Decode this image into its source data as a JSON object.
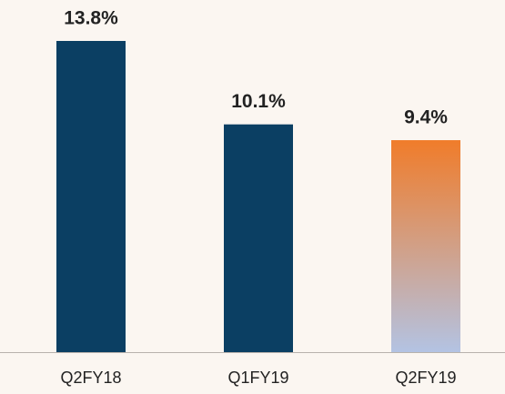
{
  "chart_data": {
    "type": "bar",
    "categories": [
      "Q2FY18",
      "Q1FY19",
      "Q2FY19"
    ],
    "values": [
      13.8,
      10.1,
      9.4
    ],
    "value_labels": [
      "13.8%",
      "10.1%",
      "9.4%"
    ],
    "colors": [
      "#0b3f63",
      "#0b3f63",
      {
        "gradient": [
          "#f07c2a",
          "#b3c3e3"
        ]
      }
    ]
  }
}
